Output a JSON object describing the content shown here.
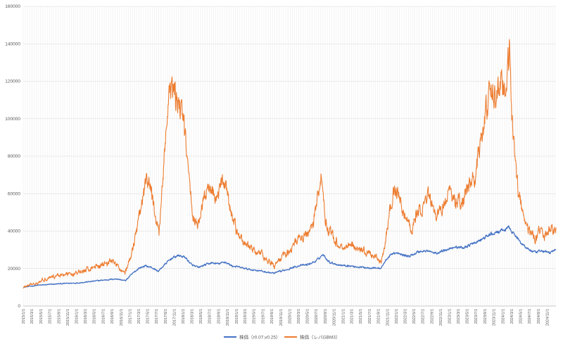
{
  "chart_data": {
    "type": "line",
    "title": "",
    "xlabel": "",
    "ylabel": "",
    "ylim": [
      0,
      160000
    ],
    "yticks": [
      0,
      20000,
      40000,
      60000,
      80000,
      100000,
      120000,
      140000,
      160000
    ],
    "xlim": [
      "2015-01-01",
      "2024-12-31"
    ],
    "grid": true,
    "legend_position": "bottom",
    "x_tick_labels": [
      "2015/1/1",
      "2015/3/1",
      "2015/5/1",
      "2015/7/1",
      "2015/9/1",
      "2015/11/1",
      "2016/1/1",
      "2016/3/1",
      "2016/5/1",
      "2016/7/1",
      "2016/9/1",
      "2016/11/1",
      "2017/1/1",
      "2017/3/1",
      "2017/5/1",
      "2017/7/1",
      "2017/9/1",
      "2017/11/1",
      "2018/1/1",
      "2018/3/1",
      "2018/5/1",
      "2018/7/1",
      "2018/9/1",
      "2018/11/1",
      "2019/1/1",
      "2019/3/1",
      "2019/5/1",
      "2019/7/1",
      "2019/9/1",
      "2019/11/1",
      "2020/1/1",
      "2020/3/1",
      "2020/5/1",
      "2020/7/1",
      "2020/9/1",
      "2020/11/1",
      "2021/1/1",
      "2021/3/1",
      "2021/5/1",
      "2021/7/1",
      "2021/9/1",
      "2021/11/1",
      "2022/1/1",
      "2022/3/1",
      "2022/5/1",
      "2022/7/1",
      "2022/9/1",
      "2022/11/1",
      "2023/1/1",
      "2023/3/1",
      "2023/5/1",
      "2023/7/1",
      "2023/9/1",
      "2023/11/1",
      "2024/1/1",
      "2024/3/1",
      "2024/5/1",
      "2024/7/1",
      "2024/9/1",
      "2024/11/1"
    ],
    "series": [
      {
        "name": "株価（r0.07,v0.25）",
        "color": "#4472C4",
        "points": [
          [
            "2015-01-01",
            10000
          ],
          [
            "2015-04-01",
            11000
          ],
          [
            "2015-07-01",
            11500
          ],
          [
            "2015-10-01",
            12000
          ],
          [
            "2016-01-01",
            12300
          ],
          [
            "2016-04-01",
            13000
          ],
          [
            "2016-07-01",
            13800
          ],
          [
            "2016-10-01",
            14500
          ],
          [
            "2016-12-01",
            13500
          ],
          [
            "2017-01-15",
            17000
          ],
          [
            "2017-03-01",
            20000
          ],
          [
            "2017-04-15",
            21500
          ],
          [
            "2017-06-01",
            20500
          ],
          [
            "2017-07-15",
            18500
          ],
          [
            "2017-09-01",
            22500
          ],
          [
            "2017-10-15",
            25500
          ],
          [
            "2017-12-01",
            27000
          ],
          [
            "2018-01-15",
            26000
          ],
          [
            "2018-03-01",
            22000
          ],
          [
            "2018-04-15",
            20500
          ],
          [
            "2018-06-01",
            22000
          ],
          [
            "2018-07-15",
            23000
          ],
          [
            "2018-09-01",
            22500
          ],
          [
            "2018-10-15",
            23500
          ],
          [
            "2018-12-01",
            21500
          ],
          [
            "2019-02-01",
            20500
          ],
          [
            "2019-04-01",
            19500
          ],
          [
            "2019-06-01",
            19000
          ],
          [
            "2019-08-01",
            18000
          ],
          [
            "2019-09-15",
            17500
          ],
          [
            "2019-11-01",
            18500
          ],
          [
            "2020-01-01",
            20000
          ],
          [
            "2020-03-01",
            21500
          ],
          [
            "2020-05-01",
            22000
          ],
          [
            "2020-07-01",
            24000
          ],
          [
            "2020-08-15",
            27500
          ],
          [
            "2020-10-01",
            23500
          ],
          [
            "2020-12-01",
            22000
          ],
          [
            "2021-02-01",
            21500
          ],
          [
            "2021-04-01",
            21000
          ],
          [
            "2021-06-01",
            20500
          ],
          [
            "2021-08-01",
            20500
          ],
          [
            "2021-09-15",
            20000
          ],
          [
            "2021-11-01",
            25500
          ],
          [
            "2021-12-15",
            28500
          ],
          [
            "2022-02-01",
            27500
          ],
          [
            "2022-04-01",
            26500
          ],
          [
            "2022-06-01",
            29000
          ],
          [
            "2022-08-01",
            29500
          ],
          [
            "2022-10-01",
            28000
          ],
          [
            "2022-12-01",
            30000
          ],
          [
            "2023-02-01",
            31500
          ],
          [
            "2023-04-01",
            31000
          ],
          [
            "2023-06-01",
            33000
          ],
          [
            "2023-08-01",
            35000
          ],
          [
            "2023-10-01",
            38000
          ],
          [
            "2023-12-01",
            39500
          ],
          [
            "2024-01-15",
            40500
          ],
          [
            "2024-02-15",
            42000
          ],
          [
            "2024-04-01",
            37000
          ],
          [
            "2024-05-15",
            33000
          ],
          [
            "2024-07-01",
            30000
          ],
          [
            "2024-08-15",
            28500
          ],
          [
            "2024-10-01",
            29500
          ],
          [
            "2024-11-15",
            28500
          ],
          [
            "2024-12-31",
            30000
          ]
        ]
      },
      {
        "name": "株価（レバGBM3）",
        "color": "#ED7D31",
        "points": [
          [
            "2015-01-01",
            10000
          ],
          [
            "2015-03-01",
            11500
          ],
          [
            "2015-05-01",
            13500
          ],
          [
            "2015-07-01",
            15500
          ],
          [
            "2015-09-01",
            16500
          ],
          [
            "2015-11-01",
            17000
          ],
          [
            "2016-01-01",
            17500
          ],
          [
            "2016-03-01",
            19000
          ],
          [
            "2016-05-01",
            21000
          ],
          [
            "2016-07-01",
            22500
          ],
          [
            "2016-09-01",
            24000
          ],
          [
            "2016-11-01",
            19500
          ],
          [
            "2016-12-01",
            18000
          ],
          [
            "2017-01-15",
            28000
          ],
          [
            "2017-03-01",
            45000
          ],
          [
            "2017-04-01",
            58000
          ],
          [
            "2017-05-01",
            68000
          ],
          [
            "2017-06-01",
            60000
          ],
          [
            "2017-07-01",
            45000
          ],
          [
            "2017-07-20",
            38000
          ],
          [
            "2017-08-20",
            75000
          ],
          [
            "2017-09-20",
            105000
          ],
          [
            "2017-10-15",
            118000
          ],
          [
            "2017-11-10",
            110000
          ],
          [
            "2017-12-10",
            108000
          ],
          [
            "2018-01-10",
            95000
          ],
          [
            "2018-02-10",
            68000
          ],
          [
            "2018-03-10",
            48000
          ],
          [
            "2018-04-10",
            43000
          ],
          [
            "2018-05-10",
            52000
          ],
          [
            "2018-06-10",
            60000
          ],
          [
            "2018-07-10",
            65000
          ],
          [
            "2018-08-10",
            58000
          ],
          [
            "2018-09-10",
            62000
          ],
          [
            "2018-10-10",
            68000
          ],
          [
            "2018-11-10",
            55000
          ],
          [
            "2018-12-10",
            45000
          ],
          [
            "2019-01-15",
            38000
          ],
          [
            "2019-03-01",
            33000
          ],
          [
            "2019-05-01",
            30000
          ],
          [
            "2019-07-01",
            27000
          ],
          [
            "2019-08-15",
            24000
          ],
          [
            "2019-09-15",
            21000
          ],
          [
            "2019-11-01",
            25000
          ],
          [
            "2020-01-01",
            30000
          ],
          [
            "2020-03-01",
            36000
          ],
          [
            "2020-05-01",
            38000
          ],
          [
            "2020-06-15",
            45000
          ],
          [
            "2020-07-15",
            60000
          ],
          [
            "2020-08-05",
            72000
          ],
          [
            "2020-09-01",
            45000
          ],
          [
            "2020-10-01",
            40000
          ],
          [
            "2020-11-15",
            34000
          ],
          [
            "2021-01-01",
            31000
          ],
          [
            "2021-03-01",
            33000
          ],
          [
            "2021-05-01",
            30000
          ],
          [
            "2021-07-01",
            28000
          ],
          [
            "2021-08-15",
            26000
          ],
          [
            "2021-09-20",
            22000
          ],
          [
            "2021-10-20",
            35000
          ],
          [
            "2021-11-20",
            52000
          ],
          [
            "2021-12-20",
            63000
          ],
          [
            "2022-01-20",
            57000
          ],
          [
            "2022-03-01",
            49000
          ],
          [
            "2022-04-15",
            40000
          ],
          [
            "2022-05-15",
            48000
          ],
          [
            "2022-07-01",
            54000
          ],
          [
            "2022-08-15",
            58000
          ],
          [
            "2022-10-01",
            48000
          ],
          [
            "2022-11-15",
            53000
          ],
          [
            "2023-01-01",
            62000
          ],
          [
            "2023-02-15",
            55000
          ],
          [
            "2023-04-01",
            57000
          ],
          [
            "2023-05-15",
            63000
          ],
          [
            "2023-07-01",
            72000
          ],
          [
            "2023-08-20",
            95000
          ],
          [
            "2023-10-01",
            115000
          ],
          [
            "2023-11-15",
            110000
          ],
          [
            "2023-12-20",
            120000
          ],
          [
            "2024-01-20",
            112000
          ],
          [
            "2024-02-15",
            135000
          ],
          [
            "2024-03-05",
            100000
          ],
          [
            "2024-03-25",
            80000
          ],
          [
            "2024-04-15",
            62000
          ],
          [
            "2024-05-15",
            50000
          ],
          [
            "2024-06-15",
            42000
          ],
          [
            "2024-07-15",
            38000
          ],
          [
            "2024-08-15",
            36000
          ],
          [
            "2024-09-15",
            42000
          ],
          [
            "2024-10-15",
            37000
          ],
          [
            "2024-11-15",
            40000
          ],
          [
            "2024-12-31",
            42000
          ]
        ]
      }
    ]
  }
}
